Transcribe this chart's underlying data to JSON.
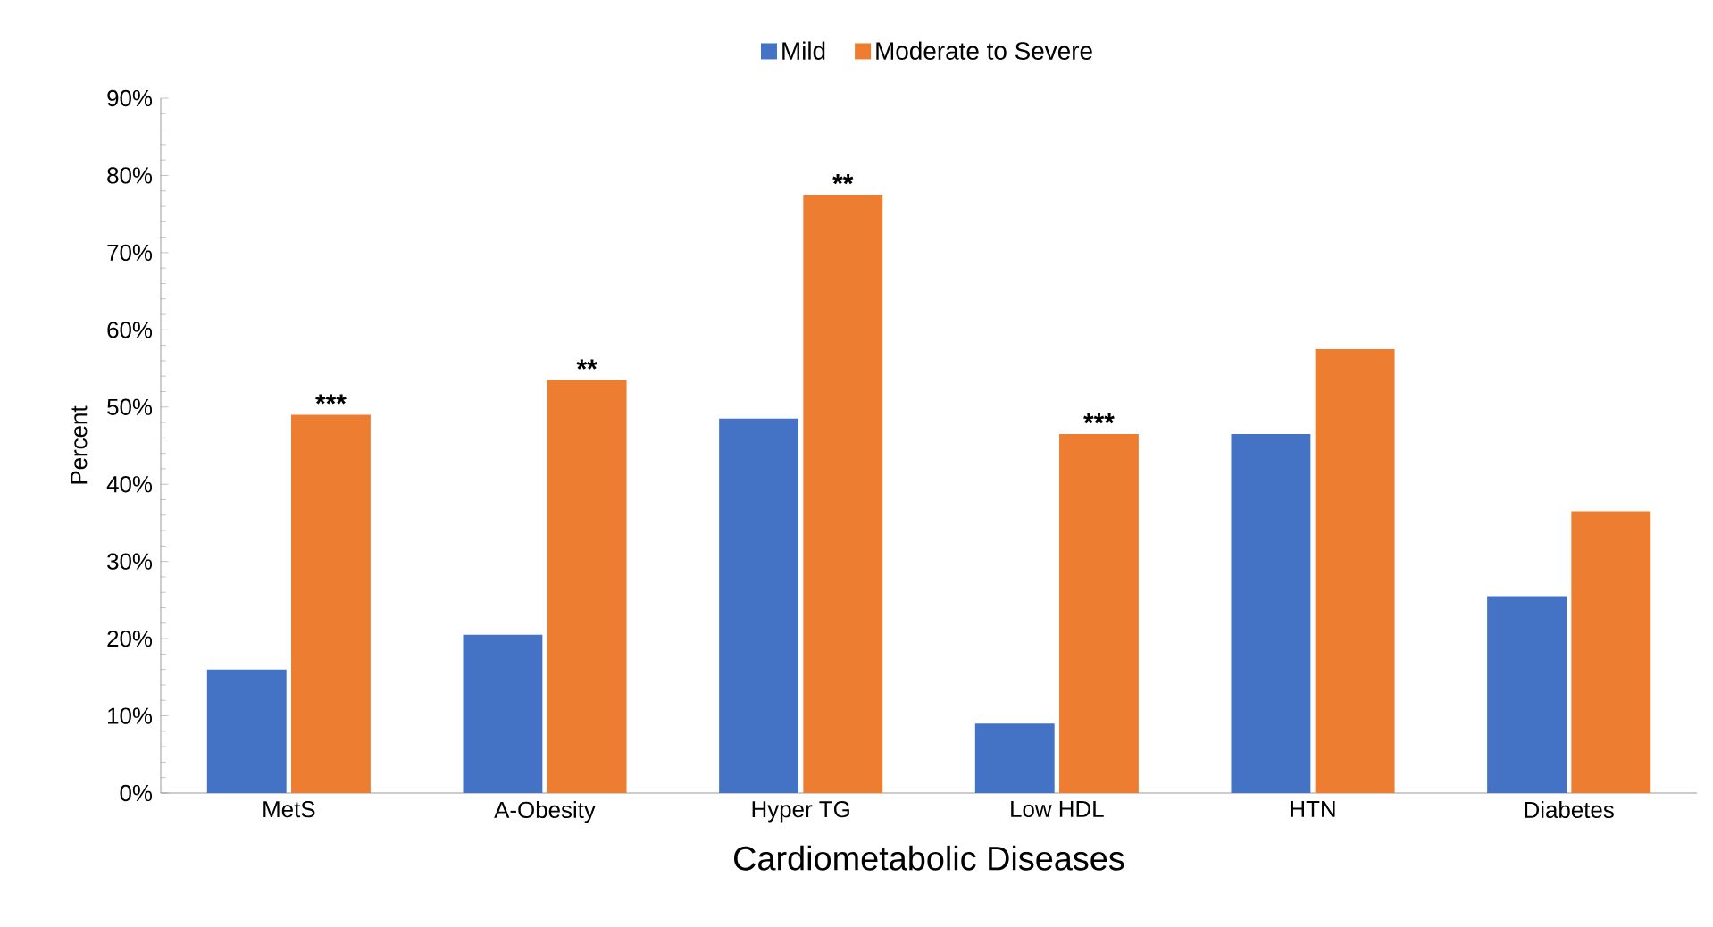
{
  "chart_data": {
    "type": "bar",
    "xlabel": "Cardiometabolic Diseases",
    "ylabel": "Percent",
    "categories": [
      "MetS",
      "A-Obesity",
      "Hyper TG",
      "Low HDL",
      "HTN",
      "Diabetes"
    ],
    "series": [
      {
        "name": "Mild",
        "color": "#4472c4",
        "values": [
          16,
          20.5,
          48.5,
          9,
          46.5,
          25.5
        ]
      },
      {
        "name": "Moderate to Severe",
        "color": "#ed7d31",
        "values": [
          49,
          53.5,
          77.5,
          46.5,
          57.5,
          36.5
        ]
      }
    ],
    "ylim": [
      0,
      90
    ],
    "yticks": [
      {
        "value": 0,
        "label": "0%"
      },
      {
        "value": 10,
        "label": "10%"
      },
      {
        "value": 20,
        "label": "20%"
      },
      {
        "value": 30,
        "label": "30%"
      },
      {
        "value": 40,
        "label": "40%"
      },
      {
        "value": 50,
        "label": "50%"
      },
      {
        "value": 60,
        "label": "60%"
      },
      {
        "value": 70,
        "label": "70%"
      },
      {
        "value": 80,
        "label": "80%"
      },
      {
        "value": 90,
        "label": "90%"
      }
    ],
    "annotations": [
      {
        "text": "***",
        "x": "MetS",
        "y": 49
      },
      {
        "text": "**",
        "x": "A-Obesity",
        "y": 53.5
      },
      {
        "text": "**",
        "x": "Hyper TG",
        "y": 77.5
      },
      {
        "text": "***",
        "x": "Low HDL",
        "y": 46.5
      }
    ],
    "legend": "top",
    "grid": false
  }
}
